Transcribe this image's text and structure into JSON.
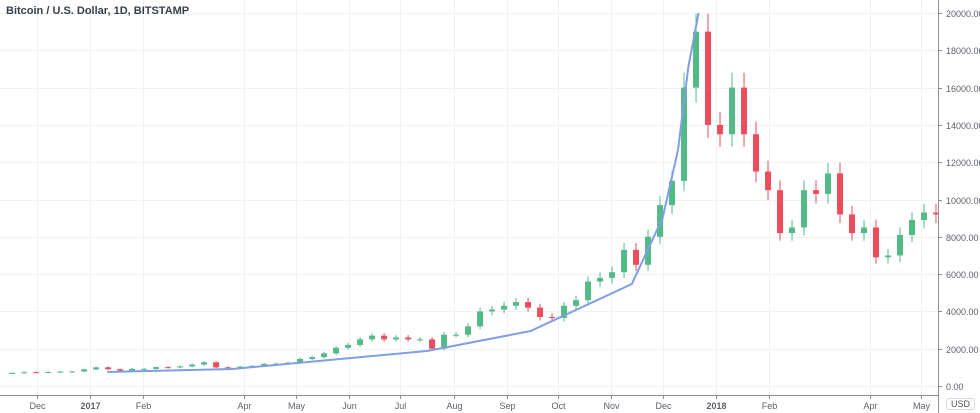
{
  "header": {
    "title": "Bitcoin / U.S. Dollar, 1D, BITSTAMP",
    "currency_badge": "USD"
  },
  "colors": {
    "up": "#53b987",
    "down": "#eb4d5c",
    "trendline": "#7f9fe3",
    "grid": "#eef1f6",
    "axis": "#8a8d94",
    "text": "#5d606b"
  },
  "chart_data": {
    "type": "candlestick",
    "title": "Bitcoin / U.S. Dollar, 1D, BITSTAMP",
    "xlabel": "",
    "ylabel": "",
    "ylim": [
      0,
      20000
    ],
    "grid": true,
    "y_ticks": [
      "0.00",
      "2000.00",
      "4000.00",
      "6000.00",
      "8000.00",
      "10000.00",
      "12000.00",
      "14000.00",
      "16000.00",
      "18000.00",
      "20000.00"
    ],
    "y_tick_values": [
      0,
      2000,
      4000,
      6000,
      8000,
      10000,
      12000,
      14000,
      16000,
      18000,
      20000
    ],
    "x_ticks": [
      {
        "label": "Dec",
        "date": "2016-12-01"
      },
      {
        "label": "2017",
        "date": "2017-01-01",
        "bold": true
      },
      {
        "label": "Feb",
        "date": "2017-02-01"
      },
      {
        "label": "Apr",
        "date": "2017-04-01"
      },
      {
        "label": "May",
        "date": "2017-05-01"
      },
      {
        "label": "Jun",
        "date": "2017-06-01"
      },
      {
        "label": "Jul",
        "date": "2017-07-01"
      },
      {
        "label": "Aug",
        "date": "2017-08-01"
      },
      {
        "label": "Sep",
        "date": "2017-09-01"
      },
      {
        "label": "Oct",
        "date": "2017-10-01"
      },
      {
        "label": "Nov",
        "date": "2017-11-01"
      },
      {
        "label": "Dec",
        "date": "2017-12-01"
      },
      {
        "label": "2018",
        "date": "2018-01-01",
        "bold": true
      },
      {
        "label": "Feb",
        "date": "2018-02-01"
      },
      {
        "label": "Apr",
        "date": "2018-04-01"
      },
      {
        "label": "May",
        "date": "2018-05-01"
      }
    ],
    "series_start": "2016-11-13",
    "period_days": 7,
    "open_first": 700,
    "closes": [
      700,
      740,
      730,
      750,
      770,
      780,
      890,
      1000,
      900,
      820,
      920,
      920,
      1010,
      1000,
      1050,
      1150,
      1270,
      1000,
      960,
      1040,
      1080,
      1180,
      1200,
      1250,
      1450,
      1550,
      1750,
      2050,
      2200,
      2500,
      2700,
      2500,
      2600,
      2500,
      2500,
      2000,
      2750,
      2750,
      3200,
      4000,
      4100,
      4300,
      4500,
      4200,
      3700,
      3650,
      4300,
      4600,
      5600,
      5800,
      6100,
      7300,
      6500,
      8000,
      9700,
      11000,
      16000,
      19000,
      14000,
      13500,
      16000,
      13500,
      11500,
      10500,
      8200,
      8500,
      10500,
      10300,
      11400,
      9200,
      8200,
      8500,
      6900,
      7000,
      8100,
      8900,
      9300,
      9200
    ],
    "trendline": [
      {
        "date": "2017-01-11",
        "price": 750
      },
      {
        "date": "2017-03-25",
        "price": 910
      },
      {
        "date": "2017-07-17",
        "price": 1880
      },
      {
        "date": "2017-09-15",
        "price": 2950
      },
      {
        "date": "2017-11-13",
        "price": 5470
      },
      {
        "date": "2017-12-01",
        "price": 9010
      },
      {
        "date": "2017-12-10",
        "price": 12650
      },
      {
        "date": "2017-12-16",
        "price": 17100
      },
      {
        "date": "2017-12-22",
        "price": 20000
      }
    ]
  }
}
